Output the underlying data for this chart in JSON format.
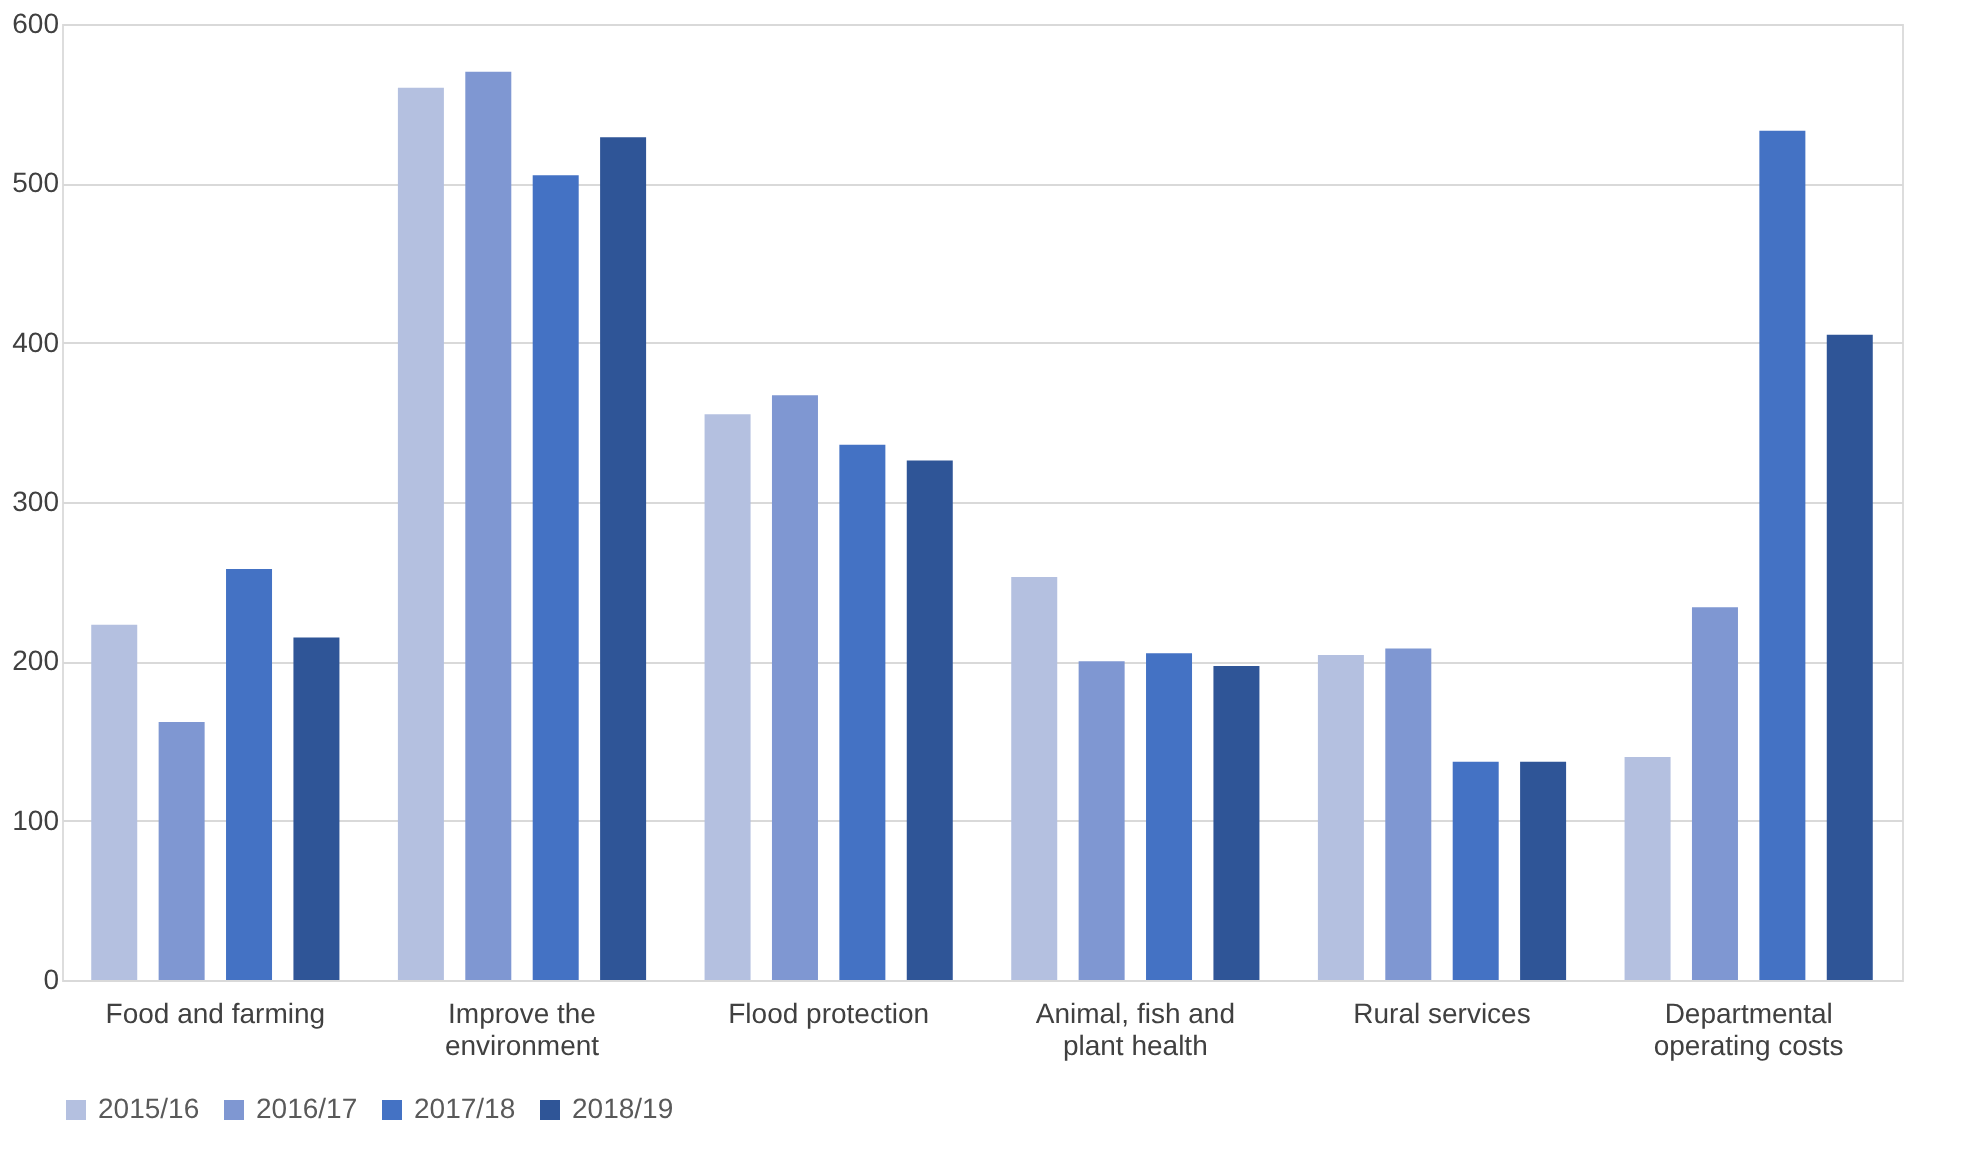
{
  "chart_data": {
    "type": "bar",
    "categories": [
      "Food and farming",
      "Improve the environment",
      "Flood protection",
      "Animal, fish and plant health",
      "Rural services",
      "Departmental operating costs"
    ],
    "series": [
      {
        "name": "2015/16",
        "color": "#b4c0e0",
        "values": [
          223,
          560,
          355,
          253,
          204,
          140
        ]
      },
      {
        "name": "2016/17",
        "color": "#7f97d2",
        "values": [
          162,
          570,
          367,
          200,
          208,
          234
        ]
      },
      {
        "name": "2017/18",
        "color": "#4472c4",
        "values": [
          258,
          505,
          336,
          205,
          137,
          533
        ]
      },
      {
        "name": "2018/19",
        "color": "#2f5597",
        "values": [
          215,
          529,
          326,
          197,
          137,
          405
        ]
      }
    ],
    "ylim": [
      0,
      600
    ],
    "yticks": [
      0,
      100,
      200,
      300,
      400,
      500,
      600
    ],
    "grid": "y",
    "legend": "bottom"
  }
}
